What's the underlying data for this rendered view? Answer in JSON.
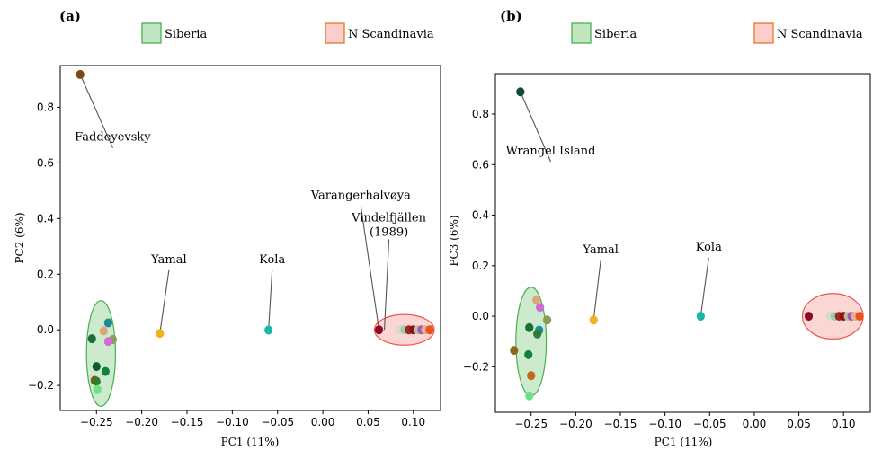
{
  "chart_data": [
    {
      "type": "scatter",
      "panel_label": "(a)",
      "xlabel": "PC1 (11%)",
      "ylabel": "PC2 (6%)",
      "xlim": [
        -0.29,
        0.13
      ],
      "ylim": [
        -0.29,
        0.95
      ],
      "xticks": [
        -0.25,
        -0.2,
        -0.15,
        -0.1,
        -0.05,
        0.0,
        0.05,
        0.1
      ],
      "xtick_labels": [
        "-0.25",
        "-0.20",
        "-0.15",
        "-0.10",
        "-0.05",
        "0.00",
        "0.05",
        "0.10"
      ],
      "yticks": [
        -0.2,
        0.0,
        0.2,
        0.4,
        0.6,
        0.8
      ],
      "ytick_labels": [
        "-0.2",
        "0.0",
        "0.2",
        "0.4",
        "0.6",
        "0.8"
      ],
      "legend": [
        {
          "label": "Siberia",
          "color": "#8fd18f"
        },
        {
          "label": "N Scandinavia",
          "color": "#f7a6a0"
        }
      ],
      "groups": [
        {
          "name": "Siberia",
          "center": [
            -0.245,
            -0.085
          ],
          "radius": [
            0.016,
            0.19
          ],
          "color": "#8fd18f"
        },
        {
          "name": "N Scandinavia",
          "center": [
            0.09,
            0.0
          ],
          "radius": [
            0.033,
            0.055
          ],
          "color": "#f7a6a0"
        }
      ],
      "points": [
        {
          "x": -0.268,
          "y": 0.918,
          "color": "#7a4a10"
        },
        {
          "x": -0.18,
          "y": -0.013,
          "color": "#f2b21b"
        },
        {
          "x": -0.06,
          "y": -0.001,
          "color": "#1ab7a6"
        },
        {
          "x": -0.237,
          "y": 0.025,
          "color": "#1a8c99"
        },
        {
          "x": -0.242,
          "y": -0.004,
          "color": "#e0a47a"
        },
        {
          "x": -0.255,
          "y": -0.032,
          "color": "#1b6d3a"
        },
        {
          "x": -0.232,
          "y": -0.035,
          "color": "#8a9a5b"
        },
        {
          "x": -0.237,
          "y": -0.042,
          "color": "#d46ad4"
        },
        {
          "x": -0.25,
          "y": -0.132,
          "color": "#0d5c2a"
        },
        {
          "x": -0.24,
          "y": -0.15,
          "color": "#14803d"
        },
        {
          "x": -0.252,
          "y": -0.182,
          "color": "#8b5a12"
        },
        {
          "x": -0.25,
          "y": -0.185,
          "color": "#2e7d32"
        },
        {
          "x": -0.249,
          "y": -0.215,
          "color": "#6ee08a"
        },
        {
          "x": 0.062,
          "y": 0.0,
          "color": "#8b0a2a"
        },
        {
          "x": 0.085,
          "y": 0.0,
          "color": "#d9d9c9"
        },
        {
          "x": 0.09,
          "y": 0.0,
          "color": "#9ccfb0"
        },
        {
          "x": 0.095,
          "y": 0.0,
          "color": "#a0291c"
        },
        {
          "x": 0.1,
          "y": 0.0,
          "color": "#8a1414"
        },
        {
          "x": 0.105,
          "y": 0.0,
          "color": "#c8b89a"
        },
        {
          "x": 0.109,
          "y": 0.0,
          "color": "#9b59b6"
        },
        {
          "x": 0.113,
          "y": 0.0,
          "color": "#e0b090"
        },
        {
          "x": 0.118,
          "y": 0.0,
          "color": "#e6541a"
        }
      ],
      "annotations": [
        {
          "text": "Faddeyevsky",
          "point": [
            -0.268,
            0.918
          ],
          "text_pos": [
            -0.232,
            0.68
          ]
        },
        {
          "text": "Yamal",
          "point": [
            -0.18,
            -0.013
          ],
          "text_pos": [
            -0.17,
            0.24
          ]
        },
        {
          "text": "Kola",
          "point": [
            -0.06,
            -0.001
          ],
          "text_pos": [
            -0.056,
            0.24
          ]
        },
        {
          "text": "Varangerhalvøya",
          "point": [
            0.062,
            0.0
          ],
          "text_pos": [
            0.042,
            0.47
          ]
        },
        {
          "text": "Vindelfjällen",
          "text2": "(1989)",
          "point": [
            0.068,
            0.0
          ],
          "text_pos": [
            0.073,
            0.39
          ]
        }
      ]
    },
    {
      "type": "scatter",
      "panel_label": "(b)",
      "xlabel": "PC1 (11%)",
      "ylabel": "PC3 (6%)",
      "xlim": [
        -0.29,
        0.13
      ],
      "ylim": [
        -0.38,
        0.96
      ],
      "xticks": [
        -0.25,
        -0.2,
        -0.15,
        -0.1,
        -0.05,
        0.0,
        0.05,
        0.1
      ],
      "xtick_labels": [
        "-0.25",
        "-0.20",
        "-0.15",
        "-0.10",
        "-0.05",
        "0.00",
        "0.05",
        "0.10"
      ],
      "yticks": [
        -0.2,
        0.0,
        0.2,
        0.4,
        0.6,
        0.8
      ],
      "ytick_labels": [
        "-0.2",
        "0.0",
        "0.2",
        "0.4",
        "0.6",
        "0.8"
      ],
      "legend": [
        {
          "label": "Siberia",
          "color": "#8fd18f"
        },
        {
          "label": "N Scandinavia",
          "color": "#f7a6a0"
        }
      ],
      "groups": [
        {
          "name": "Siberia",
          "center": [
            -0.25,
            -0.1
          ],
          "radius": [
            0.017,
            0.215
          ],
          "color": "#8fd18f"
        },
        {
          "name": "N Scandinavia",
          "center": [
            0.088,
            0.0
          ],
          "radius": [
            0.034,
            0.09
          ],
          "color": "#f7a6a0"
        }
      ],
      "points": [
        {
          "x": -0.262,
          "y": 0.888,
          "color": "#0f4a3a"
        },
        {
          "x": -0.18,
          "y": -0.015,
          "color": "#f2b21b"
        },
        {
          "x": -0.06,
          "y": 0.0,
          "color": "#1ab7a6"
        },
        {
          "x": -0.244,
          "y": 0.065,
          "color": "#e0a47a"
        },
        {
          "x": -0.24,
          "y": 0.035,
          "color": "#d46ad4"
        },
        {
          "x": -0.232,
          "y": -0.015,
          "color": "#8a9a5b"
        },
        {
          "x": -0.252,
          "y": -0.045,
          "color": "#1b6d3a"
        },
        {
          "x": -0.241,
          "y": -0.055,
          "color": "#1a8c99"
        },
        {
          "x": -0.243,
          "y": -0.07,
          "color": "#2e7d32"
        },
        {
          "x": -0.269,
          "y": -0.135,
          "color": "#8a6a1a"
        },
        {
          "x": -0.253,
          "y": -0.152,
          "color": "#14803d"
        },
        {
          "x": -0.25,
          "y": -0.235,
          "color": "#c06a1a"
        },
        {
          "x": -0.252,
          "y": -0.315,
          "color": "#6ee08a"
        },
        {
          "x": 0.061,
          "y": 0.0,
          "color": "#8b0a2a"
        },
        {
          "x": 0.085,
          "y": 0.0,
          "color": "#d9d9c9"
        },
        {
          "x": 0.09,
          "y": 0.0,
          "color": "#9ccfb0"
        },
        {
          "x": 0.095,
          "y": 0.0,
          "color": "#a0291c"
        },
        {
          "x": 0.1,
          "y": 0.0,
          "color": "#8a1414"
        },
        {
          "x": 0.105,
          "y": 0.0,
          "color": "#c8b89a"
        },
        {
          "x": 0.109,
          "y": 0.0,
          "color": "#9b59b6"
        },
        {
          "x": 0.113,
          "y": 0.0,
          "color": "#e0b090"
        },
        {
          "x": 0.118,
          "y": 0.0,
          "color": "#e6541a"
        }
      ],
      "annotations": [
        {
          "text": "Wrangel Island",
          "point": [
            -0.262,
            0.888
          ],
          "text_pos": [
            -0.228,
            0.64
          ]
        },
        {
          "text": "Yamal",
          "point": [
            -0.18,
            -0.015
          ],
          "text_pos": [
            -0.172,
            0.25
          ]
        },
        {
          "text": "Kola",
          "point": [
            -0.06,
            0.0
          ],
          "text_pos": [
            -0.051,
            0.26
          ]
        }
      ]
    }
  ]
}
